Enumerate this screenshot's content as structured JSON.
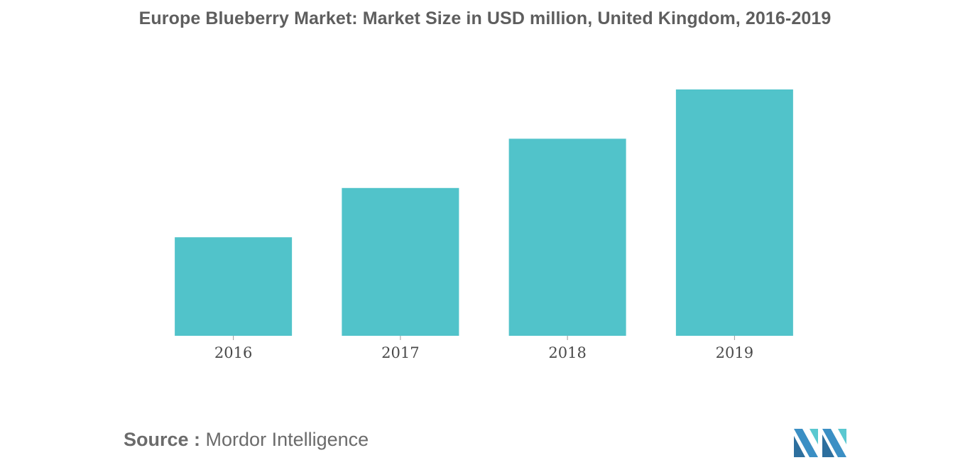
{
  "chart_data": {
    "type": "bar",
    "title": "Europe Blueberry Market: Market Size in USD million, United Kingdom, 2016-2019",
    "categories": [
      "2016",
      "2017",
      "2018",
      "2019"
    ],
    "values": [
      40,
      60,
      80,
      100
    ],
    "xlabel": "",
    "ylabel": "",
    "ylim": [
      0,
      100
    ],
    "grid": false,
    "bar_color": "#51c3ca",
    "axis_tick_color": "#9a9a9a"
  },
  "source": {
    "prefix": "Source :",
    "name": "Mordor Intelligence"
  },
  "logo": {
    "icon": "mordor-intelligence-logo-icon",
    "colors": [
      "#3b8fc4",
      "#5ac8d0",
      "#2d6f9e"
    ]
  }
}
